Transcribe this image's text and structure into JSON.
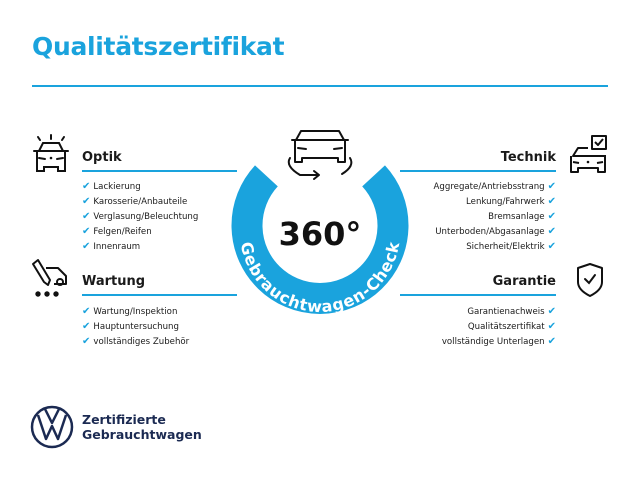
{
  "title": "Qualitätszertifikat",
  "center": {
    "value": "360°",
    "ring_text": "Gebrauchtwagen-Check"
  },
  "sections": {
    "optik": {
      "heading": "Optik",
      "items": [
        "Lackierung",
        "Karosserie/Anbauteile",
        "Verglasung/Beleuchtung",
        "Felgen/Reifen",
        "Innenraum"
      ]
    },
    "wartung": {
      "heading": "Wartung",
      "items": [
        "Wartung/Inspektion",
        "Hauptuntersuchung",
        "vollständiges Zubehör"
      ]
    },
    "technik": {
      "heading": "Technik",
      "items": [
        "Aggregate/Antriebsstrang",
        "Lenkung/Fahrwerk",
        "Bremsanlage",
        "Unterboden/Abgasanlage",
        "Sicherheit/Elektrik"
      ]
    },
    "garantie": {
      "heading": "Garantie",
      "items": [
        "Garantienachweis",
        "Qualitätszertifikat",
        "vollständige Unterlagen"
      ]
    }
  },
  "check_mark": "✔",
  "brand": {
    "line1": "Zertifizierte",
    "line2": "Gebrauchtwagen"
  },
  "colors": {
    "accent": "#1aa3dd",
    "brand": "#1b2a52",
    "text": "#1a1a1a"
  }
}
